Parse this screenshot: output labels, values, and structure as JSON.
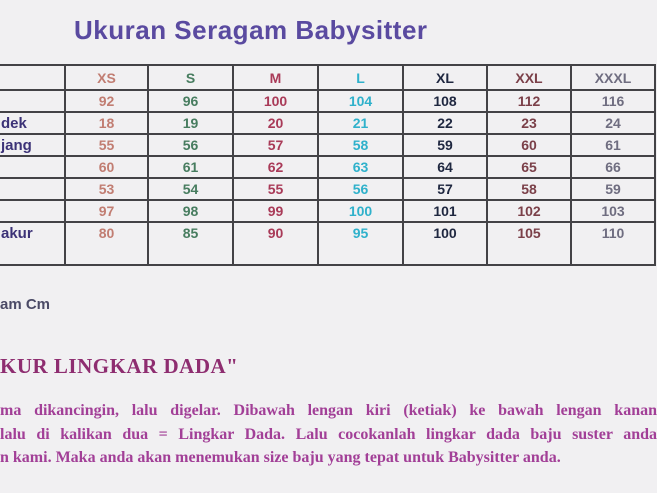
{
  "title": "Ukuran Seragam Babysitter",
  "table": {
    "size_headers": [
      "XS",
      "S",
      "M",
      "L",
      "XL",
      "XXL",
      "XXXL"
    ],
    "column_colors": [
      "#c17d72",
      "#477c5f",
      "#a93a58",
      "#2fb1cb",
      "#1f2740",
      "#7b4049",
      "#6f6d80"
    ],
    "row_label_color": "#3c3277",
    "rows": [
      {
        "label": "",
        "values": [
          "92",
          "96",
          "100",
          "104",
          "108",
          "112",
          "116"
        ]
      },
      {
        "label": "dek",
        "values": [
          "18",
          "19",
          "20",
          "21",
          "22",
          "23",
          "24"
        ]
      },
      {
        "label": "jang",
        "values": [
          "55",
          "56",
          "57",
          "58",
          "59",
          "60",
          "61"
        ]
      },
      {
        "label": "",
        "values": [
          "60",
          "61",
          "62",
          "63",
          "64",
          "65",
          "66"
        ]
      },
      {
        "label": "",
        "values": [
          "53",
          "54",
          "55",
          "56",
          "57",
          "58",
          "59"
        ]
      },
      {
        "label": "",
        "values": [
          "97",
          "98",
          "99",
          "100",
          "101",
          "102",
          "103"
        ]
      },
      {
        "label": "akur",
        "values": [
          "80",
          "85",
          "90",
          "95",
          "100",
          "105",
          "110"
        ]
      }
    ]
  },
  "unit_note": "am Cm",
  "section_heading": "KUR LINGKAR DADA\"",
  "instructions": {
    "lines": [
      "ma dikancingin, lalu digelar. Dibawah lengan kiri (ketiak) ke bawah lengan kanan",
      "lalu di kalikan dua = Lingkar Dada. Lalu cocokanlah lingkar dada baju suster anda",
      "n kami. Maka anda akan menemukan size baju yang tepat untuk Babysitter anda."
    ]
  },
  "accent_colors": {
    "title_purple": "#5a4aa0",
    "magenta_text": "#a23f97",
    "heading_magenta": "#8e2d70"
  }
}
